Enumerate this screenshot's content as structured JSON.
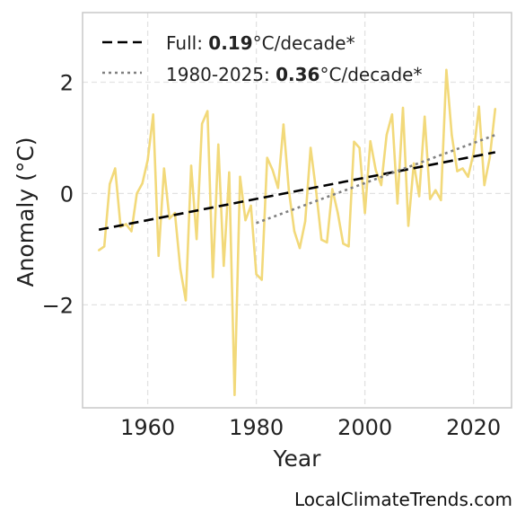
{
  "chart_data": {
    "type": "line",
    "xlabel": "Year",
    "ylabel": "Anomaly (°C)",
    "xlim": [
      1948,
      2027
    ],
    "ylim": [
      -3.85,
      3.25
    ],
    "xticks": [
      "1960",
      "1980",
      "2000",
      "2020"
    ],
    "yticks": [
      "−2",
      "0",
      "2"
    ],
    "grid": true,
    "legend_placement": "top-left",
    "series": [
      {
        "kind": "anomaly",
        "color": "#f2d97a",
        "x": [
          1951,
          1952,
          1953,
          1954,
          1955,
          1956,
          1957,
          1958,
          1959,
          1960,
          1961,
          1962,
          1963,
          1964,
          1965,
          1966,
          1967,
          1968,
          1969,
          1970,
          1971,
          1972,
          1973,
          1974,
          1975,
          1976,
          1977,
          1978,
          1979,
          1980,
          1981,
          1982,
          1983,
          1984,
          1985,
          1986,
          1987,
          1988,
          1989,
          1990,
          1991,
          1992,
          1993,
          1994,
          1995,
          1996,
          1997,
          1998,
          1999,
          2000,
          2001,
          2002,
          2003,
          2004,
          2005,
          2006,
          2007,
          2008,
          2009,
          2010,
          2011,
          2012,
          2013,
          2014,
          2015,
          2016,
          2017,
          2018,
          2019,
          2020,
          2021,
          2022,
          2023,
          2024
        ],
        "values": [
          -1.02,
          -0.95,
          0.17,
          0.45,
          -0.6,
          -0.55,
          -0.68,
          0.0,
          0.18,
          0.6,
          1.42,
          -1.12,
          0.45,
          -0.45,
          -0.35,
          -1.35,
          -1.92,
          0.5,
          -0.82,
          1.25,
          1.48,
          -1.5,
          0.88,
          -1.3,
          0.38,
          -3.62,
          0.3,
          -0.48,
          -0.22,
          -1.45,
          -1.55,
          0.64,
          0.42,
          0.1,
          1.24,
          0.05,
          -0.68,
          -0.98,
          -0.5,
          0.82,
          0.05,
          -0.83,
          -0.88,
          0.08,
          -0.35,
          -0.9,
          -0.95,
          0.93,
          0.82,
          -0.35,
          0.94,
          0.42,
          0.15,
          1.05,
          1.42,
          -0.18,
          1.54,
          -0.58,
          0.54,
          -0.05,
          1.38,
          -0.1,
          0.06,
          -0.12,
          2.22,
          1.05,
          0.4,
          0.45,
          0.3,
          0.72,
          1.56,
          0.15,
          0.65,
          1.52
        ]
      },
      {
        "kind": "trend-full",
        "name": "Full:",
        "rate": "0.19",
        "unit": "°C/decade*",
        "color": "#000000",
        "x": [
          1951,
          2024
        ],
        "values": [
          -0.65,
          0.74
        ]
      },
      {
        "kind": "trend-recent",
        "name": "1980-2025:",
        "rate": "0.36",
        "unit": "°C/decade*",
        "color": "#808080",
        "x": [
          1980,
          2024
        ],
        "values": [
          -0.53,
          1.05
        ]
      }
    ]
  },
  "watermark": "LocalClimateTrends.com"
}
